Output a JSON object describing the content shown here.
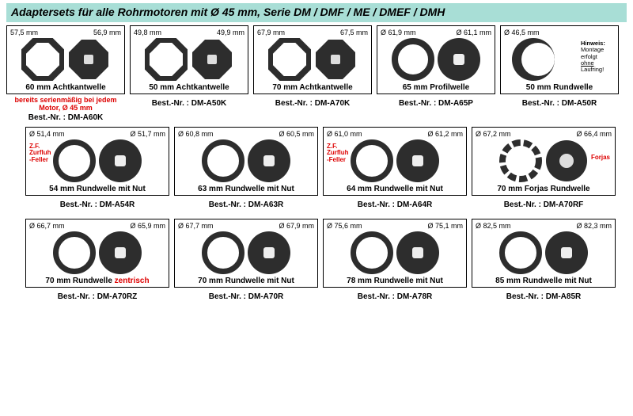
{
  "header": {
    "title": "Adaptersets für alle Rohrmotoren mit Ø 45 mm, Serie DM / DMF / ME / DMEF / DMH",
    "background_color": "#a8ded6",
    "font_color": "#000000"
  },
  "shape_color": "#2d2d2d",
  "red_color": "#d00000",
  "rows": [
    [
      {
        "dims": [
          "57,5 mm",
          "56,9 mm"
        ],
        "label": "60 mm Achtkantwelle",
        "bestnr": "Best.-Nr. : DM-A60K",
        "subnote_red": "bereits serienmäßig bei jedem Motor, Ø 45 mm",
        "style": "octagon"
      },
      {
        "dims": [
          "49,8 mm",
          "49,9 mm"
        ],
        "label": "50 mm Achtkantwelle",
        "bestnr": "Best.-Nr. : DM-A50K",
        "style": "octagon"
      },
      {
        "dims": [
          "67,9 mm",
          "67,5 mm"
        ],
        "label": "70 mm Achtkantwelle",
        "bestnr": "Best.-Nr. : DM-A70K",
        "style": "octagon"
      },
      {
        "dims": [
          "Ø 61,9 mm",
          "Ø 61,1 mm"
        ],
        "label": "65 mm Profilwelle",
        "bestnr": "Best.-Nr. : DM-A65P",
        "style": "profile"
      },
      {
        "dims": [
          "Ø 46,5 mm",
          ""
        ],
        "label": "50 mm Rundwelle",
        "bestnr": "Best.-Nr. : DM-A50R",
        "hinweis": {
          "title": "Hinweis:",
          "line1": "Montage erfolgt",
          "line2_u": "ohne",
          "line2_rest": " Laufring!"
        },
        "style": "single-crescent"
      }
    ],
    [
      {
        "dims": [
          "Ø 51,4 mm",
          "Ø 51,7 mm"
        ],
        "label": "54 mm Rundwelle mit Nut",
        "bestnr": "Best.-Nr. : DM-A54R",
        "overlay": "Z.F.\nZurfluh\n-Feller",
        "style": "round-nut"
      },
      {
        "dims": [
          "Ø 60,8 mm",
          "Ø 60,5 mm"
        ],
        "label": "63 mm Rundwelle mit Nut",
        "bestnr": "Best.-Nr. : DM-A63R",
        "style": "round-nut"
      },
      {
        "dims": [
          "Ø 61,0 mm",
          "Ø 61,2 mm"
        ],
        "label": "64 mm Rundwelle mit Nut",
        "bestnr": "Best.-Nr. : DM-A64R",
        "overlay": "Z.F.\nZurfluh\n-Feller",
        "style": "round-nut"
      },
      {
        "dims": [
          "Ø 67,2 mm",
          "Ø 66,4 mm"
        ],
        "label": "70 mm Forjas Rundwelle",
        "bestnr": "Best.-Nr. : DM-A70RF",
        "overlay_right": "Forjas",
        "style": "forjas"
      }
    ],
    [
      {
        "dims": [
          "Ø 66,7 mm",
          "Ø 65,9 mm"
        ],
        "label_html": "70 mm Rundwelle <span class=\"zentrisch\">zentrisch</span>",
        "bestnr": "Best.-Nr. : DM-A70RZ",
        "style": "round-nut"
      },
      {
        "dims": [
          "Ø 67,7 mm",
          "Ø 67,9 mm"
        ],
        "label": "70 mm Rundwelle mit Nut",
        "bestnr": "Best.-Nr. : DM-A70R",
        "style": "round-nut"
      },
      {
        "dims": [
          "Ø 75,6 mm",
          "Ø 75,1 mm"
        ],
        "label": "78 mm Rundwelle mit Nut",
        "bestnr": "Best.-Nr. : DM-A78R",
        "style": "round-nut"
      },
      {
        "dims": [
          "Ø 82,5 mm",
          "Ø 82,3 mm"
        ],
        "label": "85 mm Rundwelle mit Nut",
        "bestnr": "Best.-Nr. : DM-A85R",
        "style": "round-nut"
      }
    ]
  ]
}
